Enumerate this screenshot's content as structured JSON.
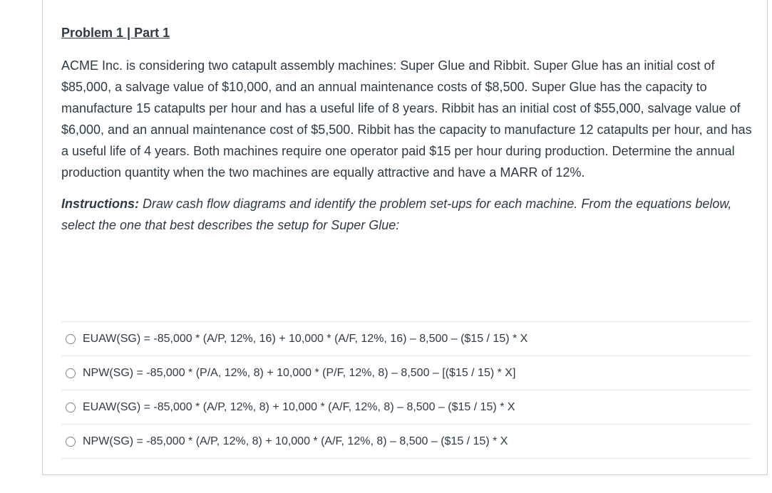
{
  "question": {
    "title": "Problem 1 | Part 1",
    "body": "ACME Inc. is considering two catapult assembly machines: Super Glue and Ribbit. Super Glue has an initial cost of $85,000, a salvage value of $10,000, and an annual maintenance costs of $8,500. Super Glue has the capacity to manufacture 15 catapults per hour and has a useful life of 8 years. Ribbit has an initial cost of $55,000, salvage value of $6,000, and an annual maintenance cost of  $5,500. Ribbit has the capacity to manufacture 12 catapults per hour, and has a useful life of 4 years. Both machines require one operator paid $15 per hour during production. Determine the annual production quantity when the two machines are equally attractive and have a MARR of 12%.",
    "instructions_label": "Instructions:",
    "instructions_text": " Draw cash flow diagrams and identify the problem set-ups for each machine. From the equations below, select the one that best describes the setup for Super Glue:"
  },
  "answers": [
    {
      "label": "EUAW(SG) = -85,000 * (A/P, 12%, 16) + 10,000 * (A/F, 12%, 16) – 8,500 – ($15 / 15) * X",
      "selected": false
    },
    {
      "label": "NPW(SG) = -85,000 * (P/A, 12%, 8) + 10,000 * (P/F, 12%, 8) – 8,500 – [($15 / 15) * X]",
      "selected": false
    },
    {
      "label": "EUAW(SG) = -85,000 * (A/P, 12%, 8) + 10,000 * (A/F, 12%, 8) – 8,500 – ($15 / 15) * X",
      "selected": false
    },
    {
      "label": "NPW(SG) = -85,000 * (A/P, 12%, 8) + 10,000 * (A/F, 12%, 8) – 8,500 – ($15 / 15) * X",
      "selected": false
    }
  ],
  "icons": {
    "radio": "radio-unselected-icon"
  },
  "colors": {
    "text": "#2d3b45",
    "border": "#c7cdd1",
    "divider": "#e3e6e8",
    "radio_border": "#7b858c"
  }
}
